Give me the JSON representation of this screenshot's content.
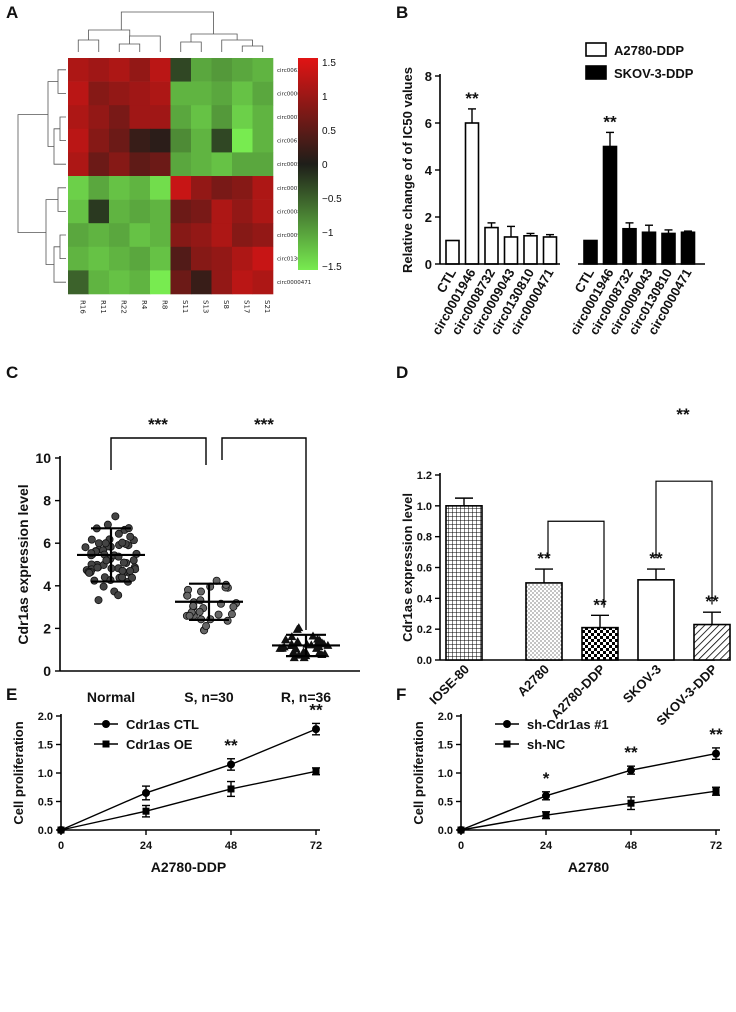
{
  "panels": {
    "A": "A",
    "B": "B",
    "C": "C",
    "D": "D",
    "E": "E",
    "F": "F"
  },
  "chart_data": [
    {
      "id": "A",
      "type": "heatmap",
      "rows": [
        "circ0063809",
        "circ0000284",
        "circ0001567",
        "circ0061140",
        "circ0005101",
        "circ0001946",
        "circ0008732",
        "circ0009043",
        "circ0130810",
        "circ0000471"
      ],
      "columns": [
        "R16",
        "R11",
        "R22",
        "R4",
        "R8",
        "S11",
        "S13",
        "S8",
        "S17",
        "S21"
      ],
      "values": [
        [
          1.1,
          1.0,
          1.1,
          0.9,
          1.2,
          -0.3,
          -1.0,
          -0.9,
          -1.0,
          -1.1
        ],
        [
          1.2,
          0.8,
          0.9,
          1.0,
          1.1,
          -1.1,
          -1.1,
          -1.0,
          -1.2,
          -1.0
        ],
        [
          1.1,
          0.9,
          0.7,
          1.0,
          1.0,
          -1.0,
          -1.2,
          -0.9,
          -1.3,
          -1.1
        ],
        [
          1.2,
          0.8,
          0.6,
          0.2,
          0.1,
          -0.8,
          -1.1,
          -0.3,
          -1.5,
          -1.1
        ],
        [
          1.1,
          0.6,
          0.8,
          0.5,
          0.6,
          -1.0,
          -1.1,
          -1.2,
          -1.0,
          -1.0
        ],
        [
          -1.3,
          -1.0,
          -1.2,
          -1.1,
          -1.4,
          1.3,
          0.9,
          0.7,
          0.8,
          1.1
        ],
        [
          -1.2,
          -0.2,
          -1.1,
          -1.0,
          -1.1,
          0.6,
          0.7,
          1.1,
          0.9,
          1.1
        ],
        [
          -1.0,
          -1.1,
          -1.0,
          -1.2,
          -1.1,
          0.8,
          0.9,
          1.1,
          0.8,
          0.9
        ],
        [
          -1.1,
          -1.2,
          -1.1,
          -1.0,
          -1.2,
          0.4,
          0.8,
          0.9,
          1.1,
          1.3
        ],
        [
          -0.5,
          -1.1,
          -1.2,
          -1.1,
          -1.5,
          0.6,
          0.2,
          0.9,
          1.2,
          1.1
        ]
      ],
      "colorbar_ticks": [
        "1.5",
        "1",
        "0.5",
        "0",
        "−0.5",
        "−1",
        "−1.5"
      ],
      "colorbar_range": [
        -1.5,
        1.5
      ]
    },
    {
      "id": "B",
      "type": "bar",
      "ylabel": "Relative change of of IC50 values",
      "ylim": [
        0,
        8
      ],
      "yticks": [
        "0",
        "2",
        "4",
        "6",
        "8"
      ],
      "series": [
        {
          "name": "A2780-DDP",
          "categories": [
            "CTL",
            "circ0001946",
            "circ0008732",
            "circ0009043",
            "circ0130810",
            "circ0000471"
          ],
          "values": [
            1.0,
            6.0,
            1.55,
            1.15,
            1.2,
            1.15
          ],
          "errors": [
            0,
            0.6,
            0.2,
            0.45,
            0.1,
            0.1
          ],
          "marks": [
            "",
            "**",
            "",
            "",
            "",
            ""
          ]
        },
        {
          "name": "SKOV-3-DDP",
          "categories": [
            "CTL",
            "circ0001946",
            "circ0008732",
            "circ0009043",
            "circ0130810",
            "circ0000471"
          ],
          "values": [
            1.0,
            5.0,
            1.5,
            1.35,
            1.3,
            1.35
          ],
          "errors": [
            0,
            0.6,
            0.25,
            0.3,
            0.15,
            0.05
          ],
          "marks": [
            "",
            "**",
            "",
            "",
            "",
            ""
          ]
        }
      ]
    },
    {
      "id": "C",
      "type": "scatter",
      "ylabel": "Cdr1as expression level",
      "ylim": [
        0,
        10
      ],
      "yticks": [
        "0",
        "2",
        "4",
        "6",
        "8",
        "10"
      ],
      "groups": [
        {
          "label": "Normal",
          "mean": 5.45,
          "sd": 1.25
        },
        {
          "label": "S, n=30",
          "mean": 3.25,
          "sd": 0.85
        },
        {
          "label": "R, n=36",
          "mean": 1.2,
          "sd": 0.5
        }
      ],
      "significance": [
        "***",
        "***"
      ]
    },
    {
      "id": "D",
      "type": "bar",
      "ylabel": "Cdr1as expression level",
      "ylim": [
        0,
        1.2
      ],
      "yticks": [
        "0.0",
        "0.2",
        "0.4",
        "0.6",
        "0.8",
        "1.0",
        "1.2"
      ],
      "categories": [
        "IOSE-80",
        "A2780",
        "A2780-DDP",
        "SKOV-3",
        "SKOV-3-DDP"
      ],
      "values": [
        1.0,
        0.5,
        0.21,
        0.52,
        0.23
      ],
      "errors": [
        0.05,
        0.09,
        0.08,
        0.07,
        0.08
      ],
      "marks": [
        "",
        "**",
        "**",
        "**",
        "**"
      ],
      "bracket_mark": "**"
    },
    {
      "id": "E",
      "type": "line",
      "xlabel": "A2780-DDP",
      "ylabel": "Cell proliferation",
      "x": [
        0,
        24,
        48,
        72
      ],
      "xticks": [
        "0",
        "24",
        "48",
        "72"
      ],
      "ylim": [
        0,
        2.0
      ],
      "yticks": [
        "0.0",
        "0.5",
        "1.0",
        "1.5",
        "2.0"
      ],
      "series": [
        {
          "name": "Cdr1as CTL",
          "values": [
            0,
            0.65,
            1.15,
            1.77
          ],
          "errors": [
            0,
            0.12,
            0.1,
            0.1
          ],
          "marker": "circle"
        },
        {
          "name": "Cdr1as OE",
          "values": [
            0,
            0.33,
            0.72,
            1.03
          ],
          "errors": [
            0,
            0.1,
            0.13,
            0.06
          ],
          "marker": "square"
        }
      ],
      "marks": [
        "",
        "",
        "**",
        "**"
      ]
    },
    {
      "id": "F",
      "type": "line",
      "xlabel": "A2780",
      "ylabel": "Cell proliferation",
      "x": [
        0,
        24,
        48,
        72
      ],
      "xticks": [
        "0",
        "24",
        "48",
        "72"
      ],
      "ylim": [
        0,
        2.0
      ],
      "yticks": [
        "0.0",
        "0.5",
        "1.0",
        "1.5",
        "2.0"
      ],
      "series": [
        {
          "name": "sh-Cdr1as #1",
          "values": [
            0,
            0.6,
            1.05,
            1.34
          ],
          "errors": [
            0,
            0.07,
            0.07,
            0.1
          ],
          "marker": "circle"
        },
        {
          "name": "sh-NC",
          "values": [
            0,
            0.26,
            0.47,
            0.68
          ],
          "errors": [
            0,
            0.06,
            0.11,
            0.07
          ],
          "marker": "square"
        }
      ],
      "marks": [
        "",
        "*",
        "**",
        "**"
      ]
    }
  ]
}
